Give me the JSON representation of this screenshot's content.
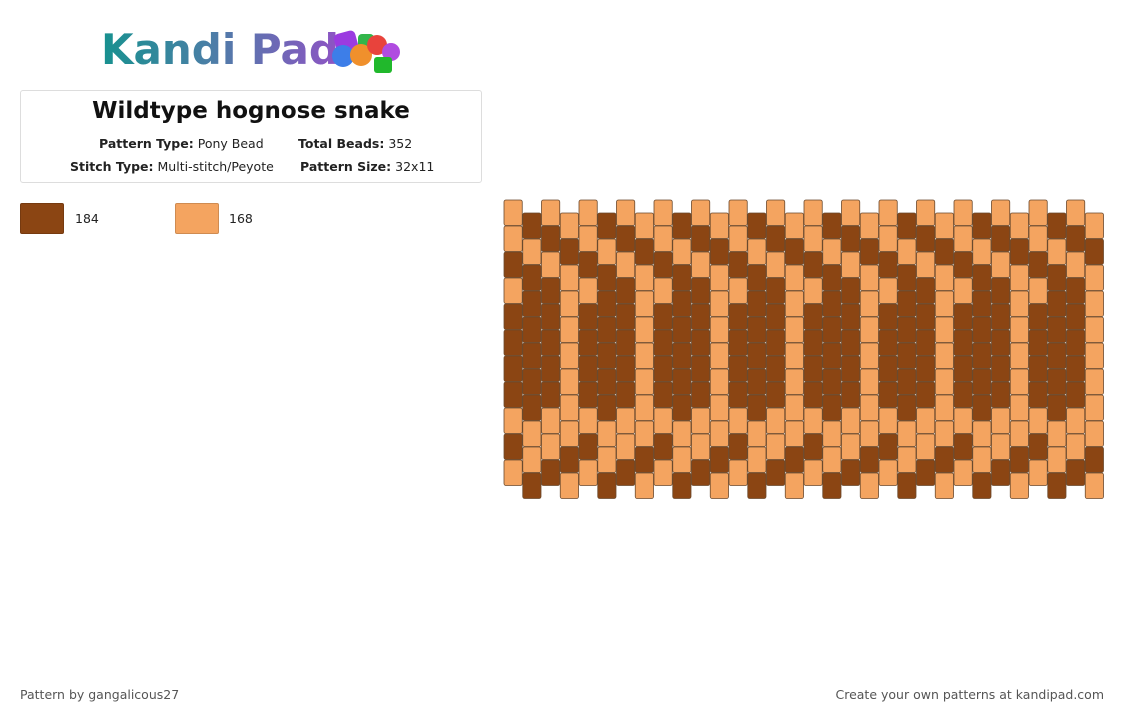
{
  "logo": "Kandi Pad",
  "title": "Wildtype hognose snake",
  "fields": [
    {
      "label": "Pattern Type:",
      "value": "Pony Bead"
    },
    {
      "label": "Total Beads:",
      "value": "352"
    },
    {
      "label": "Stitch Type:",
      "value": "Multi-stitch/Peyote"
    },
    {
      "label": "Pattern Size:",
      "value": "32x11"
    }
  ],
  "palette": [
    {
      "color": "#8B4513",
      "count": "184"
    },
    {
      "color": "#F4A460",
      "count": "168"
    }
  ],
  "grid": [
    [
      1,
      1,
      0,
      1,
      0,
      0,
      0,
      0,
      1,
      0,
      1
    ],
    [
      0,
      1,
      0,
      0,
      0,
      0,
      0,
      0,
      1,
      1,
      0
    ],
    [
      1,
      0,
      1,
      0,
      0,
      0,
      0,
      0,
      1,
      1,
      0
    ],
    [
      1,
      0,
      1,
      1,
      1,
      1,
      1,
      1,
      1,
      0,
      1
    ],
    [
      1,
      1,
      0,
      1,
      0,
      0,
      0,
      0,
      1,
      0,
      1
    ],
    [
      0,
      1,
      0,
      0,
      0,
      0,
      0,
      0,
      1,
      1,
      0
    ],
    [
      1,
      0,
      1,
      0,
      0,
      0,
      0,
      0,
      1,
      1,
      0
    ],
    [
      1,
      0,
      1,
      1,
      1,
      1,
      1,
      1,
      1,
      0,
      1
    ],
    [
      1,
      1,
      0,
      1,
      0,
      0,
      0,
      0,
      1,
      0,
      1
    ],
    [
      0,
      1,
      0,
      0,
      0,
      0,
      0,
      0,
      1,
      1,
      0
    ],
    [
      1,
      0,
      1,
      0,
      0,
      0,
      0,
      0,
      1,
      1,
      0
    ],
    [
      1,
      0,
      1,
      1,
      1,
      1,
      1,
      1,
      1,
      0,
      1
    ],
    [
      1,
      1,
      0,
      1,
      0,
      0,
      0,
      0,
      1,
      0,
      1
    ],
    [
      0,
      1,
      0,
      0,
      0,
      0,
      0,
      0,
      1,
      1,
      0
    ],
    [
      1,
      0,
      1,
      0,
      0,
      0,
      0,
      0,
      1,
      1,
      0
    ],
    [
      1,
      0,
      1,
      1,
      1,
      1,
      1,
      1,
      1,
      0,
      1
    ],
    [
      1,
      1,
      0,
      1,
      0,
      0,
      0,
      0,
      1,
      0,
      1
    ],
    [
      0,
      1,
      0,
      0,
      0,
      0,
      0,
      0,
      1,
      1,
      0
    ],
    [
      1,
      0,
      1,
      0,
      0,
      0,
      0,
      0,
      1,
      1,
      0
    ],
    [
      1,
      0,
      1,
      1,
      1,
      1,
      1,
      1,
      1,
      0,
      1
    ],
    [
      1,
      1,
      0,
      1,
      0,
      0,
      0,
      0,
      1,
      0,
      1
    ],
    [
      0,
      1,
      0,
      0,
      0,
      0,
      0,
      0,
      1,
      1,
      0
    ],
    [
      1,
      0,
      1,
      0,
      0,
      0,
      0,
      0,
      1,
      1,
      0
    ],
    [
      1,
      0,
      1,
      1,
      1,
      1,
      1,
      1,
      1,
      0,
      1
    ],
    [
      1,
      1,
      0,
      1,
      0,
      0,
      0,
      0,
      1,
      0,
      1
    ],
    [
      0,
      1,
      0,
      0,
      0,
      0,
      0,
      0,
      1,
      1,
      0
    ],
    [
      1,
      0,
      1,
      0,
      0,
      0,
      0,
      0,
      1,
      1,
      0
    ],
    [
      1,
      0,
      1,
      1,
      1,
      1,
      1,
      1,
      1,
      0,
      1
    ],
    [
      1,
      1,
      0,
      1,
      0,
      0,
      0,
      0,
      1,
      0,
      1
    ],
    [
      0,
      1,
      0,
      0,
      0,
      0,
      0,
      0,
      1,
      1,
      0
    ],
    [
      1,
      0,
      1,
      0,
      0,
      0,
      0,
      0,
      1,
      1,
      0
    ],
    [
      1,
      0,
      1,
      1,
      1,
      1,
      1,
      1,
      1,
      0,
      1
    ]
  ],
  "footer": {
    "left": "Pattern by gangalicous27",
    "right": "Create your own patterns at kandipad.com"
  }
}
